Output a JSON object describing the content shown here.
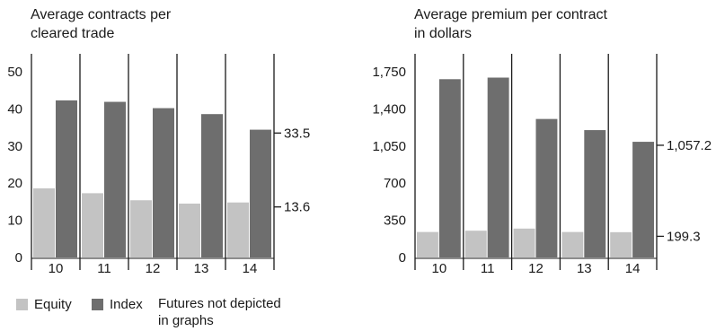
{
  "legend": {
    "equity_label": "Equity",
    "index_label": "Index",
    "note_line1": "Futures not depicted",
    "note_line2": "in graphs",
    "equity_color": "#c3c3c3",
    "index_color": "#6e6e6e"
  },
  "chart_data": [
    {
      "type": "bar",
      "title_line1": "Average contracts per",
      "title_line2": "cleared trade",
      "categories": [
        "10",
        "11",
        "12",
        "13",
        "14"
      ],
      "series": [
        {
          "name": "Equity",
          "values": [
            18.6,
            17.3,
            15.4,
            14.5,
            14.8
          ],
          "color": "#c3c3c3"
        },
        {
          "name": "Index",
          "values": [
            42.3,
            41.9,
            40.2,
            38.6,
            34.4
          ],
          "color": "#6e6e6e"
        }
      ],
      "y_ticks": [
        0,
        10,
        20,
        30,
        40,
        50
      ],
      "ylim": [
        0,
        50
      ],
      "annotations": [
        {
          "label": "33.5",
          "value": 33.5
        },
        {
          "label": "13.6",
          "value": 13.6
        }
      ]
    },
    {
      "type": "bar",
      "title_line1": "Average premium per contract",
      "title_line2": "in dollars",
      "categories": [
        "10",
        "11",
        "12",
        "13",
        "14"
      ],
      "series": [
        {
          "name": "Equity",
          "values": [
            240,
            252,
            272,
            240,
            238
          ],
          "color": "#c3c3c3"
        },
        {
          "name": "Index",
          "values": [
            1680,
            1695,
            1305,
            1200,
            1090
          ],
          "color": "#6e6e6e"
        }
      ],
      "y_ticks": [
        0,
        350,
        700,
        1050,
        1400,
        1750
      ],
      "y_tick_labels": [
        "0",
        "350",
        "700",
        "1,050",
        "1,400",
        "1,750"
      ],
      "ylim": [
        0,
        1750
      ],
      "annotations": [
        {
          "label": "1,057.2",
          "value": 1057.2
        },
        {
          "label": "199.3",
          "value": 199.3
        }
      ]
    }
  ]
}
